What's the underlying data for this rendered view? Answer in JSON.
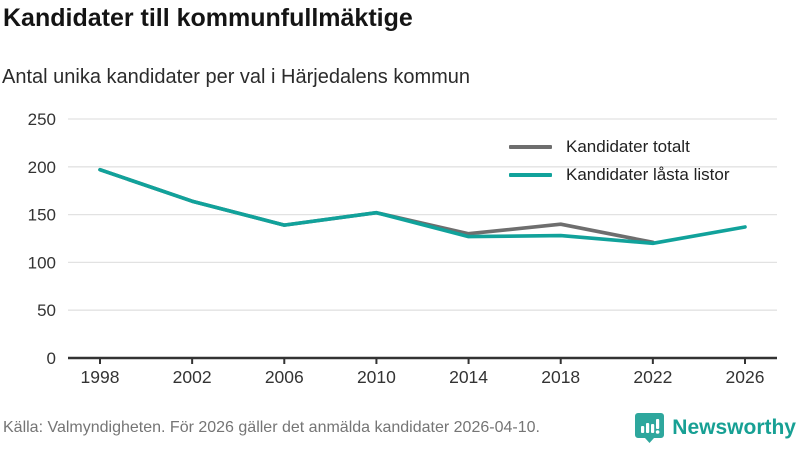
{
  "header": {
    "title": "Kandidater till kommunfullmäktige",
    "subtitle": "Antal unika kandidater per val i Härjedalens kommun"
  },
  "chart_data": {
    "type": "line",
    "x": [
      1998,
      2002,
      2006,
      2010,
      2014,
      2018,
      2022,
      2026
    ],
    "series": [
      {
        "name": "Kandidater totalt",
        "color": "#6e6e6e",
        "values": [
          197,
          164,
          139,
          152,
          130,
          140,
          121,
          null
        ]
      },
      {
        "name": "Kandidater låsta listor",
        "color": "#11a29b",
        "values": [
          197,
          164,
          139,
          152,
          127,
          128,
          120,
          137
        ]
      }
    ],
    "title": "Kandidater till kommunfullmäktige",
    "subtitle": "Antal unika kandidater per val i Härjedalens kommun",
    "xlabel": "",
    "ylabel": "",
    "ylim": [
      0,
      250
    ],
    "yticks": [
      0,
      50,
      100,
      150,
      200,
      250
    ],
    "grid": true,
    "legend_position": "top-right"
  },
  "footer": {
    "source": "Källa: Valmyndigheten. För 2026 gäller det anmälda kandidater 2026-04-10.",
    "brand": "Newsworthy"
  },
  "colors": {
    "accent": "#11a29b",
    "gray_series": "#6e6e6e",
    "axis": "#333333",
    "grid": "#e2e2e2",
    "tick_label": "#333333",
    "footer_text": "#757575",
    "logo_teal": "#2ea79d"
  }
}
